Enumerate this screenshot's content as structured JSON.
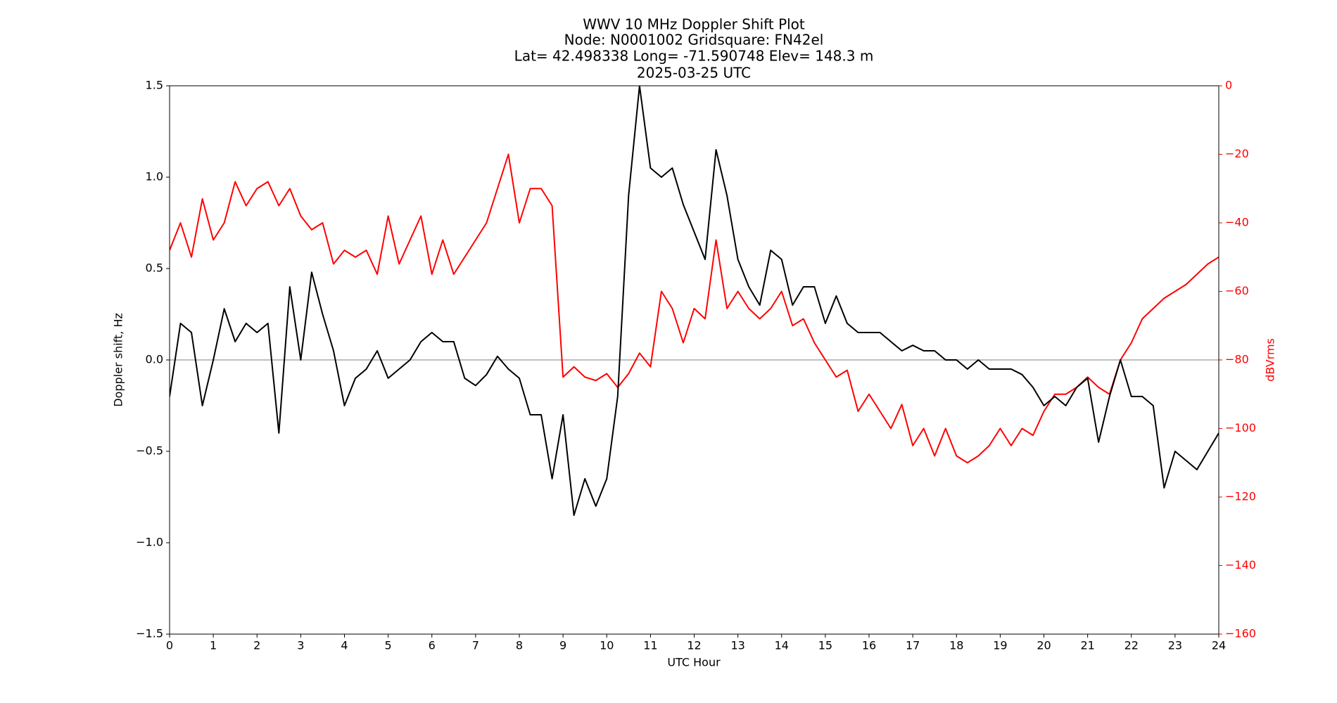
{
  "chart_data": {
    "type": "line",
    "title": [
      "WWV 10 MHz Doppler Shift Plot",
      "Node:  N0001002     Gridsquare:  FN42el",
      "Lat= 42.498338    Long= -71.590748    Elev= 148.3 m",
      "2025-03-25  UTC"
    ],
    "x_label": "UTC Hour",
    "y_label": "Doppler shift, Hz",
    "y2_label": "dBVrms",
    "x": [
      0,
      0.25,
      0.5,
      0.75,
      1,
      1.25,
      1.5,
      1.75,
      2,
      2.25,
      2.5,
      2.75,
      3,
      3.25,
      3.5,
      3.75,
      4,
      4.25,
      4.5,
      4.75,
      5,
      5.25,
      5.5,
      5.75,
      6,
      6.25,
      6.5,
      6.75,
      7,
      7.25,
      7.5,
      7.75,
      8,
      8.25,
      8.5,
      8.75,
      9,
      9.25,
      9.5,
      9.75,
      10,
      10.25,
      10.5,
      10.75,
      11,
      11.25,
      11.5,
      11.75,
      12,
      12.25,
      12.5,
      12.75,
      13,
      13.25,
      13.5,
      13.75,
      14,
      14.25,
      14.5,
      14.75,
      15,
      15.25,
      15.5,
      15.75,
      16,
      16.25,
      16.5,
      16.75,
      17,
      17.25,
      17.5,
      17.75,
      18,
      18.25,
      18.5,
      18.75,
      19,
      19.25,
      19.5,
      19.75,
      20,
      20.25,
      20.5,
      20.75,
      21,
      21.25,
      21.5,
      21.75,
      22,
      22.25,
      22.5,
      22.75,
      23,
      23.25,
      23.5,
      23.75,
      24
    ],
    "series": [
      {
        "color": "#000000",
        "axis": "y",
        "values": [
          -0.2,
          0.2,
          0.15,
          -0.25,
          0.0,
          0.28,
          0.1,
          0.2,
          0.15,
          0.2,
          -0.4,
          0.4,
          0.0,
          0.48,
          0.25,
          0.05,
          -0.25,
          -0.1,
          -0.05,
          0.05,
          -0.1,
          -0.05,
          0.0,
          0.1,
          0.15,
          0.1,
          0.1,
          -0.1,
          -0.14,
          -0.08,
          0.02,
          -0.05,
          -0.1,
          -0.3,
          -0.3,
          -0.65,
          -0.3,
          -0.85,
          -0.65,
          -0.8,
          -0.65,
          -0.2,
          0.9,
          1.5,
          1.05,
          1.0,
          1.05,
          0.85,
          0.7,
          0.55,
          1.15,
          0.9,
          0.55,
          0.4,
          0.3,
          0.6,
          0.55,
          0.3,
          0.4,
          0.4,
          0.2,
          0.35,
          0.2,
          0.15,
          0.15,
          0.15,
          0.1,
          0.05,
          0.08,
          0.05,
          0.05,
          0.0,
          0.0,
          -0.05,
          0.0,
          -0.05,
          -0.05,
          -0.05,
          -0.08,
          -0.15,
          -0.25,
          -0.2,
          -0.25,
          -0.15,
          -0.1,
          -0.45,
          -0.2,
          0.0,
          -0.2,
          -0.2,
          -0.25,
          -0.7,
          -0.5,
          -0.55,
          -0.6,
          -0.5,
          -0.4
        ]
      },
      {
        "color": "#ff0000",
        "axis": "y2",
        "values": [
          -48,
          -40,
          -50,
          -33,
          -45,
          -40,
          -28,
          -35,
          -30,
          -28,
          -35,
          -30,
          -38,
          -42,
          -40,
          -52,
          -48,
          -50,
          -48,
          -55,
          -38,
          -52,
          -45,
          -38,
          -55,
          -45,
          -55,
          -50,
          -45,
          -40,
          -30,
          -20,
          -40,
          -30,
          -30,
          -35,
          -85,
          -82,
          -85,
          -86,
          -84,
          -88,
          -84,
          -78,
          -82,
          -60,
          -65,
          -75,
          -65,
          -68,
          -45,
          -65,
          -60,
          -65,
          -68,
          -65,
          -60,
          -70,
          -68,
          -75,
          -80,
          -85,
          -83,
          -95,
          -90,
          -95,
          -100,
          -93,
          -105,
          -100,
          -108,
          -100,
          -108,
          -110,
          -108,
          -105,
          -100,
          -105,
          -100,
          -102,
          -95,
          -90,
          -90,
          -88,
          -85,
          -88,
          -90,
          -80,
          -75,
          -68,
          -65,
          -62,
          -60,
          -58,
          -55,
          -52,
          -50
        ]
      }
    ],
    "hline": 0,
    "xlim": [
      0,
      24
    ],
    "xticks": [
      0,
      1,
      2,
      3,
      4,
      5,
      6,
      7,
      8,
      9,
      10,
      11,
      12,
      13,
      14,
      15,
      16,
      17,
      18,
      19,
      20,
      21,
      22,
      23,
      24
    ],
    "ylim": [
      -1.5,
      1.5
    ],
    "yticks": [
      {
        "value": -1.5,
        "label": "−1.5"
      },
      {
        "value": -1.0,
        "label": "−1.0"
      },
      {
        "value": -0.5,
        "label": "−0.5"
      },
      {
        "value": 0,
        "label": "0.0"
      },
      0.5,
      {
        "value": 1.0,
        "label": "1.0"
      },
      1.5
    ],
    "y2lim": [
      -160,
      0
    ],
    "y2ticks": [
      {
        "value": -160,
        "label": "−160"
      },
      {
        "value": -140,
        "label": "−140"
      },
      {
        "value": -120,
        "label": "−120"
      },
      {
        "value": -100,
        "label": "−100"
      },
      {
        "value": -80,
        "label": "−80"
      },
      {
        "value": -60,
        "label": "−60"
      },
      {
        "value": -40,
        "label": "−40"
      },
      {
        "value": -20,
        "label": "−20"
      },
      0
    ],
    "y2_color": "#ff0000",
    "hline_color": "#999999"
  }
}
